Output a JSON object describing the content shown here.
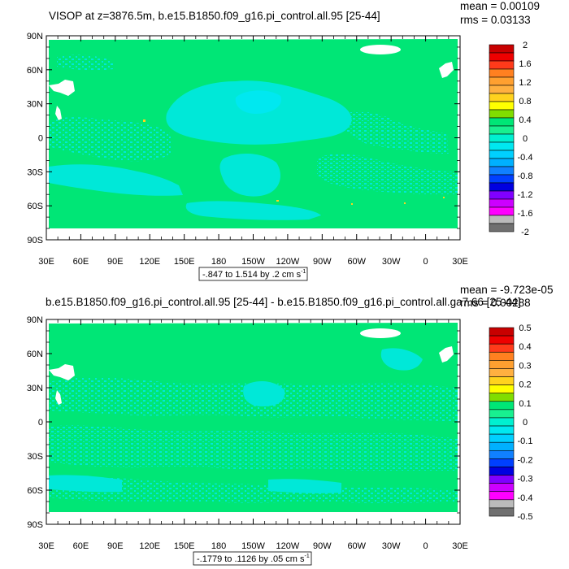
{
  "chart_data": [
    {
      "type": "heatmap",
      "title": "VISOP at z=3876.5m, b.e15.B1850.f09_g16.pi_control.all.95 [25-44]",
      "stats": {
        "mean": "mean = 0.00109",
        "rms": "rms = 0.03133"
      },
      "x_ticks": [
        "30E",
        "60E",
        "90E",
        "120E",
        "150E",
        "180",
        "150W",
        "120W",
        "90W",
        "60W",
        "30W",
        "0",
        "30E"
      ],
      "y_ticks": [
        "90N",
        "60N",
        "30N",
        "0",
        "30S",
        "60S",
        "90S"
      ],
      "range_note": {
        "text": "-.847 to 1.514 by .2 cm s",
        "sup": "-1"
      },
      "colorbar": {
        "labels": [
          "2",
          "1.6",
          "1.2",
          "0.8",
          "0.4",
          "0",
          "-0.4",
          "-0.8",
          "-1.2",
          "-1.6",
          "-2"
        ],
        "colors": [
          "#c80000",
          "#ee0000",
          "#ff3a1a",
          "#ff8020",
          "#ffa030",
          "#ffb040",
          "#ffd21e",
          "#ffff00",
          "#80dd00",
          "#00e676",
          "#18f090",
          "#00f0d0",
          "#00e8f0",
          "#00d0ff",
          "#00b0ff",
          "#1080ff",
          "#0040ff",
          "#0000e0",
          "#8000ff",
          "#cc00ff",
          "#ff00ff",
          "#bbbbbb",
          "#707070"
        ]
      }
    },
    {
      "type": "heatmap",
      "title": "b.e15.B1850.f09_g16.pi_control.all.95 [25-44] - b.e15.B1850.f09_g16.pi_control.all.ga7.66 [25-44]",
      "stats": {
        "mean": "mean = -9.723e-05",
        "rms": "rms = 0.00288"
      },
      "x_ticks": [
        "30E",
        "60E",
        "90E",
        "120E",
        "150E",
        "180",
        "150W",
        "120W",
        "90W",
        "60W",
        "30W",
        "0",
        "30E"
      ],
      "y_ticks": [
        "90N",
        "60N",
        "30N",
        "0",
        "30S",
        "60S",
        "90S"
      ],
      "range_note": {
        "text": "-.1779 to .1126 by .05 cm s",
        "sup": "-1"
      },
      "colorbar": {
        "labels": [
          "0.5",
          "0.4",
          "0.3",
          "0.2",
          "0.1",
          "0",
          "-0.1",
          "-0.2",
          "-0.3",
          "-0.4",
          "-0.5"
        ],
        "colors": [
          "#c80000",
          "#ee0000",
          "#ff3a1a",
          "#ff8020",
          "#ffa030",
          "#ffb040",
          "#ffd21e",
          "#ffff00",
          "#80dd00",
          "#00e676",
          "#18f090",
          "#00f0d0",
          "#00e8f0",
          "#00d0ff",
          "#00b0ff",
          "#1080ff",
          "#0040ff",
          "#0000e0",
          "#8000ff",
          "#cc00ff",
          "#ff00ff",
          "#bbbbbb",
          "#707070"
        ]
      }
    }
  ]
}
